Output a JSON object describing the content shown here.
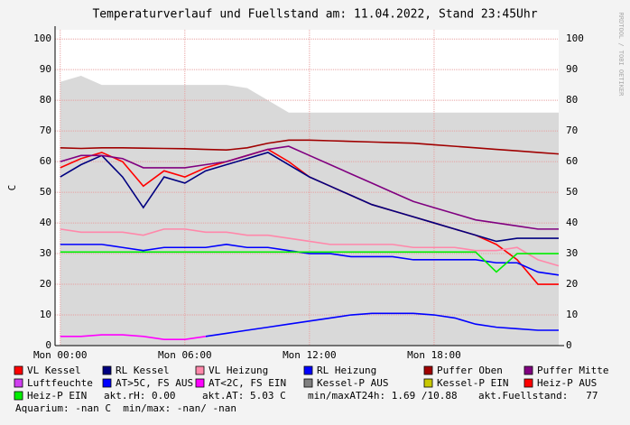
{
  "chart_data": {
    "type": "line",
    "title": "Temperaturverlauf und Fuellstand am: 11.04.2022, Stand 23:45Uhr",
    "y_label": "C",
    "watermark": "RRDTOOL / TOBI OETIKER",
    "x": [
      0,
      1,
      2,
      3,
      4,
      5,
      6,
      7,
      8,
      9,
      10,
      11,
      12,
      13,
      14,
      15,
      16,
      17,
      18,
      19,
      20,
      21,
      22,
      23,
      24
    ],
    "xlim": [
      -0.25,
      24
    ],
    "xticks": [
      {
        "value": 0,
        "label": "Mon 00:00"
      },
      {
        "value": 6,
        "label": "Mon 06:00"
      },
      {
        "value": 12,
        "label": "Mon 12:00"
      },
      {
        "value": 18,
        "label": "Mon 18:00"
      }
    ],
    "ylim": [
      0,
      103
    ],
    "yticks": [
      0,
      10,
      20,
      30,
      40,
      50,
      60,
      70,
      80,
      90,
      100
    ],
    "grid": true,
    "fill": {
      "color": "#d9d9d9",
      "values": [
        86,
        88,
        85,
        85,
        85,
        85,
        85,
        85,
        85,
        84,
        80,
        76,
        76,
        76,
        76,
        76,
        76,
        76,
        76,
        76,
        76,
        76,
        76,
        76,
        76
      ]
    },
    "series": [
      {
        "name": "VL Kessel",
        "color": "#ff0000",
        "values": [
          58,
          61,
          63,
          60,
          52,
          57,
          55,
          58,
          60,
          62,
          64,
          60,
          55,
          52,
          49,
          46,
          44,
          42,
          40,
          38,
          36,
          33,
          28,
          20,
          20
        ]
      },
      {
        "name": "RL Kessel",
        "color": "#000080",
        "values": [
          55,
          59,
          62,
          55,
          45,
          55,
          53,
          57,
          59,
          61,
          63,
          59,
          55,
          52,
          49,
          46,
          44,
          42,
          40,
          38,
          36,
          34,
          35,
          35,
          35
        ]
      },
      {
        "name": "VL Heizung",
        "color": "#ff88aa",
        "values": [
          38,
          37,
          37,
          37,
          36,
          38,
          38,
          37,
          37,
          36,
          36,
          35,
          34,
          33,
          33,
          33,
          33,
          32,
          32,
          32,
          31,
          31,
          32,
          28,
          26
        ]
      },
      {
        "name": "RL Heizung",
        "color": "#0000ff",
        "values": [
          33,
          33,
          33,
          32,
          31,
          32,
          32,
          32,
          33,
          32,
          32,
          31,
          30,
          30,
          29,
          29,
          29,
          28,
          28,
          28,
          28,
          27,
          27,
          24,
          23
        ]
      },
      {
        "name": "Puffer Oben",
        "color": "#a00000",
        "values": [
          64.5,
          64.3,
          64.5,
          64.5,
          64.4,
          64.3,
          64.2,
          64,
          63.8,
          64.5,
          66,
          67,
          67,
          66.8,
          66.6,
          66.4,
          66.2,
          66,
          65.5,
          65,
          64.5,
          64,
          63.5,
          63,
          62.5
        ]
      },
      {
        "name": "Puffer Mitte",
        "color": "#800080",
        "values": [
          60,
          62,
          62,
          61,
          58,
          58,
          58,
          59,
          60,
          62,
          64,
          65,
          62,
          59,
          56,
          53,
          50,
          47,
          45,
          43,
          41,
          40,
          39,
          38,
          38
        ]
      },
      {
        "name": "Luftfeuchte",
        "color": "#d040f0"
      },
      {
        "name": "AT>5C, FS AUS",
        "color": "#0000ff",
        "values": [
          null,
          null,
          null,
          null,
          null,
          null,
          null,
          3,
          4,
          5,
          6,
          7,
          8,
          9,
          10,
          10.5,
          10.5,
          10.5,
          10,
          9,
          7,
          6,
          5.5,
          5,
          5
        ]
      },
      {
        "name": "AT<2C, FS EIN",
        "color": "#ff00ff",
        "values": [
          3,
          3,
          3.5,
          3.5,
          3,
          2,
          2,
          3,
          null,
          null,
          null,
          null,
          null,
          null,
          null,
          null,
          null,
          null,
          null,
          null,
          null,
          null,
          null,
          null,
          null
        ]
      },
      {
        "name": "Kessel-P AUS",
        "color": "#808080"
      },
      {
        "name": "Kessel-P EIN",
        "color": "#c8c800"
      },
      {
        "name": "Heiz-P AUS",
        "color": "#ff0000"
      },
      {
        "name": "Heiz-P EIN",
        "color": "#00ee00",
        "values": [
          30.5,
          30.5,
          30.5,
          30.5,
          30.5,
          30.5,
          30.5,
          30.5,
          30.5,
          30.5,
          30.5,
          30.5,
          30.5,
          30.5,
          30.5,
          30.5,
          30.5,
          30.5,
          30.5,
          30.5,
          30.5,
          24,
          30,
          30,
          30
        ]
      }
    ],
    "info": [
      "akt.rH: 0.00",
      "akt.AT: 5.03 C",
      "min/maxAT24h: 1.69 /10.88",
      "akt.Fuellstand:   77"
    ],
    "footer": "Aquarium: -nan C  min/max: -nan/ -nan"
  }
}
